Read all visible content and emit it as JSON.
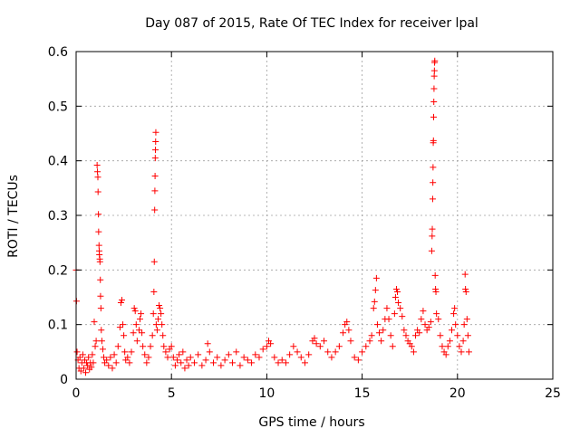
{
  "chart_data": {
    "type": "scatter",
    "title": "Day 087 of 2015, Rate Of TEC Index for receiver lpal",
    "xlabel": "GPS time / hours",
    "ylabel": "ROTI / TECUs",
    "xlim": [
      0,
      25
    ],
    "ylim": [
      0,
      0.6
    ],
    "xticks": [
      0,
      5,
      10,
      15,
      20,
      25
    ],
    "xtick_labels": [
      "0",
      "5",
      "10",
      "15",
      "20",
      "25"
    ],
    "yticks": [
      0,
      0.1,
      0.2,
      0.3,
      0.4,
      0.5,
      0.6
    ],
    "ytick_labels": [
      "0",
      "0.1",
      "0.2",
      "0.3",
      "0.4",
      "0.5",
      "0.6"
    ],
    "grid": true,
    "marker": "+",
    "color": "#ff0000",
    "series": [
      {
        "name": "ROTI",
        "points": [
          [
            0.0,
            0.2
          ],
          [
            0.02,
            0.143
          ],
          [
            0.05,
            0.05
          ],
          [
            0.1,
            0.035
          ],
          [
            0.15,
            0.02
          ],
          [
            0.2,
            0.04
          ],
          [
            0.25,
            0.015
          ],
          [
            0.3,
            0.03
          ],
          [
            0.35,
            0.045
          ],
          [
            0.4,
            0.02
          ],
          [
            0.45,
            0.035
          ],
          [
            0.5,
            0.012
          ],
          [
            0.55,
            0.03
          ],
          [
            0.6,
            0.025
          ],
          [
            0.65,
            0.04
          ],
          [
            0.7,
            0.018
          ],
          [
            0.75,
            0.03
          ],
          [
            0.8,
            0.022
          ],
          [
            0.85,
            0.045
          ],
          [
            0.9,
            0.03
          ],
          [
            0.95,
            0.105
          ],
          [
            1.0,
            0.06
          ],
          [
            1.05,
            0.07
          ],
          [
            1.1,
            0.392
          ],
          [
            1.12,
            0.38
          ],
          [
            1.14,
            0.37
          ],
          [
            1.15,
            0.343
          ],
          [
            1.17,
            0.302
          ],
          [
            1.18,
            0.27
          ],
          [
            1.2,
            0.245
          ],
          [
            1.21,
            0.235
          ],
          [
            1.22,
            0.228
          ],
          [
            1.24,
            0.22
          ],
          [
            1.25,
            0.215
          ],
          [
            1.27,
            0.182
          ],
          [
            1.28,
            0.152
          ],
          [
            1.3,
            0.13
          ],
          [
            1.32,
            0.09
          ],
          [
            1.35,
            0.07
          ],
          [
            1.4,
            0.055
          ],
          [
            1.45,
            0.04
          ],
          [
            1.5,
            0.03
          ],
          [
            1.6,
            0.035
          ],
          [
            1.7,
            0.025
          ],
          [
            1.8,
            0.04
          ],
          [
            1.9,
            0.02
          ],
          [
            2.0,
            0.045
          ],
          [
            2.1,
            0.03
          ],
          [
            2.2,
            0.06
          ],
          [
            2.3,
            0.095
          ],
          [
            2.35,
            0.14
          ],
          [
            2.4,
            0.145
          ],
          [
            2.45,
            0.1
          ],
          [
            2.5,
            0.08
          ],
          [
            2.55,
            0.05
          ],
          [
            2.6,
            0.035
          ],
          [
            2.7,
            0.04
          ],
          [
            2.8,
            0.03
          ],
          [
            2.9,
            0.05
          ],
          [
            3.0,
            0.085
          ],
          [
            3.05,
            0.13
          ],
          [
            3.1,
            0.125
          ],
          [
            3.15,
            0.1
          ],
          [
            3.2,
            0.07
          ],
          [
            3.3,
            0.09
          ],
          [
            3.35,
            0.11
          ],
          [
            3.4,
            0.12
          ],
          [
            3.45,
            0.085
          ],
          [
            3.5,
            0.06
          ],
          [
            3.6,
            0.045
          ],
          [
            3.7,
            0.03
          ],
          [
            3.8,
            0.04
          ],
          [
            3.9,
            0.06
          ],
          [
            4.0,
            0.08
          ],
          [
            4.05,
            0.12
          ],
          [
            4.08,
            0.16
          ],
          [
            4.1,
            0.215
          ],
          [
            4.12,
            0.31
          ],
          [
            4.13,
            0.345
          ],
          [
            4.14,
            0.372
          ],
          [
            4.15,
            0.405
          ],
          [
            4.16,
            0.42
          ],
          [
            4.17,
            0.435
          ],
          [
            4.18,
            0.452
          ],
          [
            4.2,
            0.1
          ],
          [
            4.25,
            0.09
          ],
          [
            4.3,
            0.11
          ],
          [
            4.35,
            0.135
          ],
          [
            4.4,
            0.13
          ],
          [
            4.45,
            0.12
          ],
          [
            4.5,
            0.1
          ],
          [
            4.55,
            0.08
          ],
          [
            4.6,
            0.06
          ],
          [
            4.7,
            0.05
          ],
          [
            4.8,
            0.04
          ],
          [
            4.9,
            0.055
          ],
          [
            5.0,
            0.06
          ],
          [
            5.1,
            0.04
          ],
          [
            5.2,
            0.025
          ],
          [
            5.3,
            0.035
          ],
          [
            5.4,
            0.045
          ],
          [
            5.5,
            0.03
          ],
          [
            5.6,
            0.05
          ],
          [
            5.7,
            0.02
          ],
          [
            5.8,
            0.035
          ],
          [
            5.9,
            0.025
          ],
          [
            6.0,
            0.04
          ],
          [
            6.2,
            0.03
          ],
          [
            6.4,
            0.045
          ],
          [
            6.6,
            0.025
          ],
          [
            6.8,
            0.035
          ],
          [
            6.9,
            0.065
          ],
          [
            7.0,
            0.05
          ],
          [
            7.2,
            0.03
          ],
          [
            7.4,
            0.04
          ],
          [
            7.6,
            0.025
          ],
          [
            7.8,
            0.035
          ],
          [
            8.0,
            0.045
          ],
          [
            8.2,
            0.03
          ],
          [
            8.4,
            0.05
          ],
          [
            8.6,
            0.025
          ],
          [
            8.8,
            0.04
          ],
          [
            9.0,
            0.035
          ],
          [
            9.2,
            0.03
          ],
          [
            9.4,
            0.045
          ],
          [
            9.6,
            0.04
          ],
          [
            9.8,
            0.055
          ],
          [
            10.0,
            0.06
          ],
          [
            10.1,
            0.07
          ],
          [
            10.2,
            0.065
          ],
          [
            10.4,
            0.04
          ],
          [
            10.6,
            0.03
          ],
          [
            10.8,
            0.035
          ],
          [
            11.0,
            0.03
          ],
          [
            11.2,
            0.045
          ],
          [
            11.4,
            0.06
          ],
          [
            11.6,
            0.05
          ],
          [
            11.8,
            0.04
          ],
          [
            12.0,
            0.03
          ],
          [
            12.2,
            0.045
          ],
          [
            12.4,
            0.07
          ],
          [
            12.5,
            0.075
          ],
          [
            12.6,
            0.065
          ],
          [
            12.8,
            0.06
          ],
          [
            13.0,
            0.07
          ],
          [
            13.2,
            0.05
          ],
          [
            13.4,
            0.04
          ],
          [
            13.6,
            0.05
          ],
          [
            13.8,
            0.06
          ],
          [
            14.0,
            0.085
          ],
          [
            14.1,
            0.1
          ],
          [
            14.2,
            0.105
          ],
          [
            14.3,
            0.09
          ],
          [
            14.4,
            0.07
          ],
          [
            14.6,
            0.04
          ],
          [
            14.8,
            0.035
          ],
          [
            15.0,
            0.05
          ],
          [
            15.2,
            0.06
          ],
          [
            15.4,
            0.07
          ],
          [
            15.5,
            0.08
          ],
          [
            15.6,
            0.13
          ],
          [
            15.65,
            0.142
          ],
          [
            15.7,
            0.163
          ],
          [
            15.75,
            0.185
          ],
          [
            15.8,
            0.1
          ],
          [
            15.9,
            0.085
          ],
          [
            16.0,
            0.07
          ],
          [
            16.1,
            0.09
          ],
          [
            16.2,
            0.11
          ],
          [
            16.3,
            0.13
          ],
          [
            16.4,
            0.11
          ],
          [
            16.5,
            0.08
          ],
          [
            16.6,
            0.06
          ],
          [
            16.7,
            0.12
          ],
          [
            16.75,
            0.15
          ],
          [
            16.8,
            0.165
          ],
          [
            16.85,
            0.16
          ],
          [
            16.9,
            0.14
          ],
          [
            17.0,
            0.13
          ],
          [
            17.1,
            0.115
          ],
          [
            17.2,
            0.09
          ],
          [
            17.3,
            0.08
          ],
          [
            17.4,
            0.07
          ],
          [
            17.5,
            0.065
          ],
          [
            17.6,
            0.06
          ],
          [
            17.7,
            0.05
          ],
          [
            17.8,
            0.08
          ],
          [
            17.9,
            0.09
          ],
          [
            18.0,
            0.085
          ],
          [
            18.1,
            0.11
          ],
          [
            18.2,
            0.125
          ],
          [
            18.3,
            0.1
          ],
          [
            18.4,
            0.09
          ],
          [
            18.5,
            0.095
          ],
          [
            18.6,
            0.105
          ],
          [
            18.65,
            0.235
          ],
          [
            18.67,
            0.262
          ],
          [
            18.68,
            0.275
          ],
          [
            18.7,
            0.33
          ],
          [
            18.71,
            0.36
          ],
          [
            18.72,
            0.388
          ],
          [
            18.73,
            0.433
          ],
          [
            18.74,
            0.437
          ],
          [
            18.75,
            0.48
          ],
          [
            18.76,
            0.508
          ],
          [
            18.77,
            0.532
          ],
          [
            18.78,
            0.555
          ],
          [
            18.79,
            0.565
          ],
          [
            18.8,
            0.58
          ],
          [
            18.81,
            0.583
          ],
          [
            18.83,
            0.19
          ],
          [
            18.85,
            0.165
          ],
          [
            18.87,
            0.16
          ],
          [
            18.9,
            0.12
          ],
          [
            19.0,
            0.11
          ],
          [
            19.1,
            0.08
          ],
          [
            19.2,
            0.06
          ],
          [
            19.3,
            0.05
          ],
          [
            19.4,
            0.045
          ],
          [
            19.5,
            0.06
          ],
          [
            19.6,
            0.07
          ],
          [
            19.7,
            0.09
          ],
          [
            19.8,
            0.12
          ],
          [
            19.85,
            0.13
          ],
          [
            19.9,
            0.1
          ],
          [
            20.0,
            0.08
          ],
          [
            20.1,
            0.06
          ],
          [
            20.2,
            0.05
          ],
          [
            20.3,
            0.07
          ],
          [
            20.35,
            0.1
          ],
          [
            20.4,
            0.192
          ],
          [
            20.42,
            0.165
          ],
          [
            20.45,
            0.16
          ],
          [
            20.5,
            0.11
          ],
          [
            20.55,
            0.08
          ],
          [
            20.6,
            0.05
          ]
        ]
      }
    ]
  }
}
